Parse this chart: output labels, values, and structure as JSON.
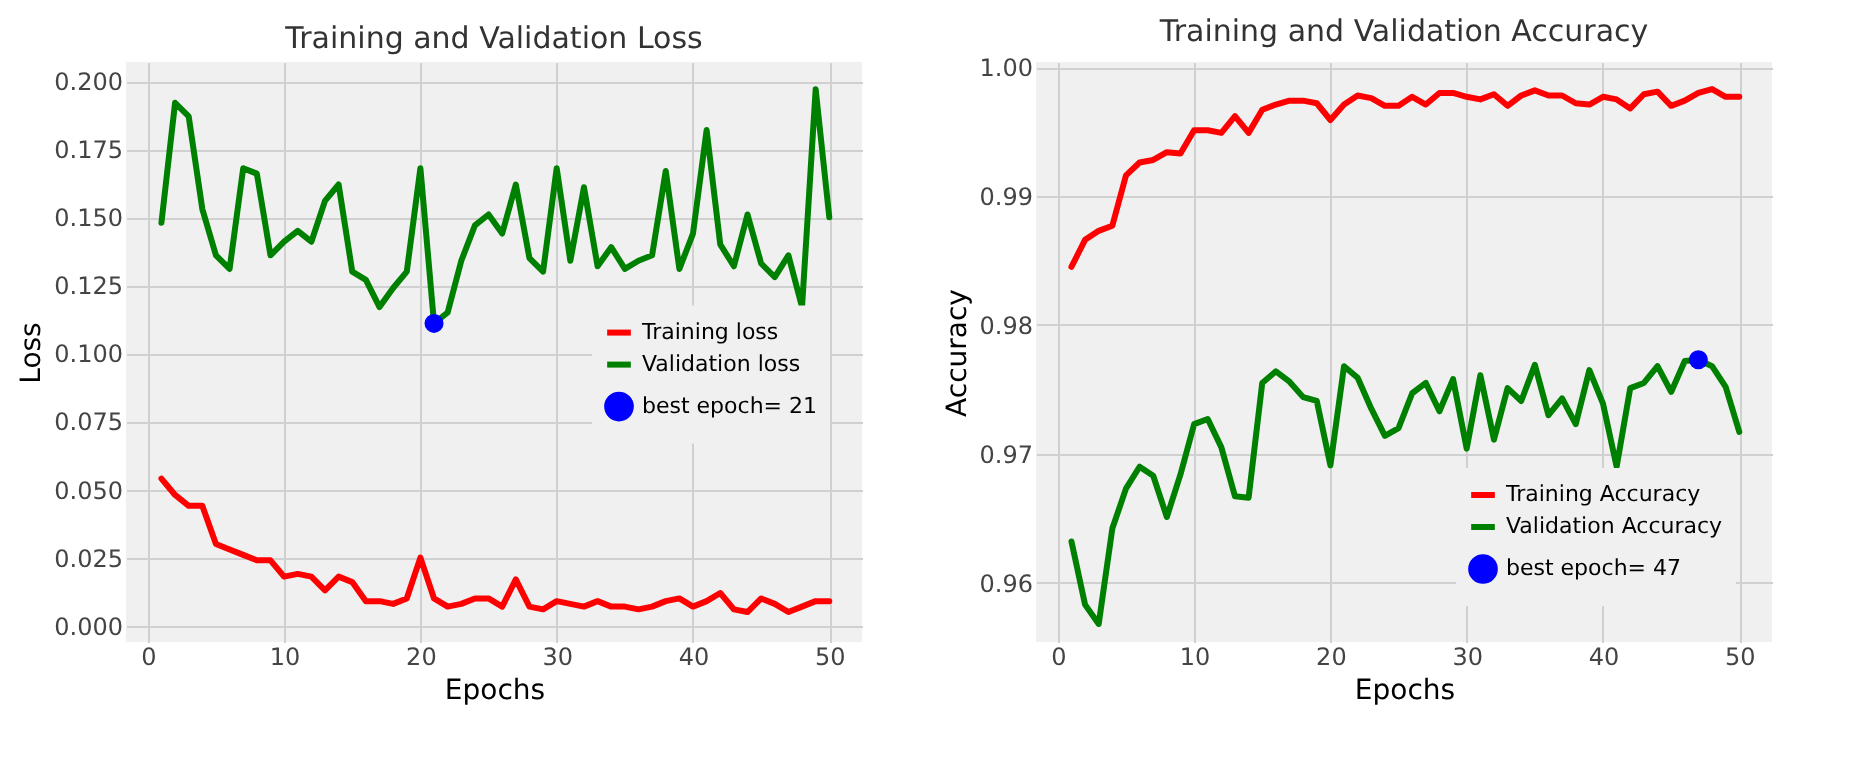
{
  "chart_data": [
    {
      "type": "line",
      "title": "Training and Validation Loss",
      "xlabel": "Epochs",
      "ylabel": "Loss",
      "x": [
        1,
        2,
        3,
        4,
        5,
        6,
        7,
        8,
        9,
        10,
        11,
        12,
        13,
        14,
        15,
        16,
        17,
        18,
        19,
        20,
        21,
        22,
        23,
        24,
        25,
        26,
        27,
        28,
        29,
        30,
        31,
        32,
        33,
        34,
        35,
        36,
        37,
        38,
        39,
        40,
        41,
        42,
        43,
        44,
        45,
        46,
        47,
        48,
        49,
        50
      ],
      "series": [
        {
          "name": "Training loss",
          "color": "#ff0000",
          "values": [
            0.054,
            0.048,
            0.044,
            0.044,
            0.03,
            0.028,
            0.026,
            0.024,
            0.024,
            0.018,
            0.019,
            0.018,
            0.013,
            0.018,
            0.016,
            0.009,
            0.009,
            0.008,
            0.01,
            0.025,
            0.01,
            0.007,
            0.008,
            0.01,
            0.01,
            0.007,
            0.017,
            0.007,
            0.006,
            0.009,
            0.008,
            0.007,
            0.009,
            0.007,
            0.007,
            0.006,
            0.007,
            0.009,
            0.01,
            0.007,
            0.009,
            0.012,
            0.006,
            0.005,
            0.01,
            0.008,
            0.005,
            0.007,
            0.009,
            0.009
          ]
        },
        {
          "name": "Validation loss",
          "color": "#008000",
          "values": [
            0.148,
            0.192,
            0.187,
            0.153,
            0.136,
            0.131,
            0.168,
            0.166,
            0.136,
            0.141,
            0.145,
            0.141,
            0.156,
            0.162,
            0.13,
            0.127,
            0.117,
            0.124,
            0.13,
            0.168,
            0.111,
            0.115,
            0.134,
            0.147,
            0.151,
            0.144,
            0.162,
            0.135,
            0.13,
            0.168,
            0.134,
            0.161,
            0.132,
            0.139,
            0.131,
            0.134,
            0.136,
            0.167,
            0.131,
            0.144,
            0.182,
            0.14,
            0.132,
            0.151,
            0.133,
            0.128,
            0.136,
            0.117,
            0.197,
            0.15
          ]
        },
        {
          "name": "best epoch= 21",
          "type": "scatter",
          "color": "#0000ff",
          "marker": "circle",
          "x": [
            21
          ],
          "values": [
            0.111
          ]
        }
      ],
      "xlim": [
        -1.6,
        52.4
      ],
      "xticks": [
        0,
        10,
        20,
        30,
        40,
        50
      ],
      "ylim": [
        -0.006,
        0.207
      ],
      "yticks": [
        {
          "value": 0,
          "label": "0.000"
        },
        {
          "value": 0.025,
          "label": "0.025"
        },
        {
          "value": 0.05,
          "label": "0.050"
        },
        {
          "value": 0.075,
          "label": "0.075"
        },
        {
          "value": 0.1,
          "label": "0.100"
        },
        {
          "value": 0.125,
          "label": "0.125"
        },
        {
          "value": 0.15,
          "label": "0.150"
        },
        {
          "value": 0.175,
          "label": "0.175"
        },
        {
          "value": 0.2,
          "label": "0.200"
        }
      ],
      "grid": true,
      "legend": "right",
      "line_style": "solid"
    },
    {
      "type": "line",
      "title": "Training and Validation Accuracy",
      "xlabel": "Epochs",
      "ylabel": "Accuracy",
      "x": [
        1,
        2,
        3,
        4,
        5,
        6,
        7,
        8,
        9,
        10,
        11,
        12,
        13,
        14,
        15,
        16,
        17,
        18,
        19,
        20,
        21,
        22,
        23,
        24,
        25,
        26,
        27,
        28,
        29,
        30,
        31,
        32,
        33,
        34,
        35,
        36,
        37,
        38,
        39,
        40,
        41,
        42,
        43,
        44,
        45,
        46,
        47,
        48,
        49,
        50
      ],
      "series": [
        {
          "name": "Training Accuracy",
          "color": "#ff0000",
          "values": [
            0.9845,
            0.9866,
            0.9873,
            0.9877,
            0.9916,
            0.9926,
            0.9928,
            0.9934,
            0.9933,
            0.9951,
            0.9951,
            0.9949,
            0.9962,
            0.9949,
            0.9967,
            0.9971,
            0.9974,
            0.9974,
            0.9972,
            0.9959,
            0.9971,
            0.9978,
            0.9976,
            0.997,
            0.997,
            0.9977,
            0.9971,
            0.998,
            0.998,
            0.9977,
            0.9975,
            0.9979,
            0.997,
            0.9978,
            0.9982,
            0.9978,
            0.9978,
            0.9972,
            0.9971,
            0.9977,
            0.9975,
            0.9968,
            0.9979,
            0.9981,
            0.997,
            0.9974,
            0.998,
            0.9983,
            0.9977,
            0.9977
          ]
        },
        {
          "name": "Validation Accuracy",
          "color": "#008000",
          "values": [
            0.9632,
            0.9583,
            0.9568,
            0.9642,
            0.9673,
            0.969,
            0.9683,
            0.9651,
            0.9684,
            0.9723,
            0.9727,
            0.9705,
            0.9667,
            0.9666,
            0.9755,
            0.9764,
            0.9756,
            0.9744,
            0.9741,
            0.9691,
            0.9768,
            0.9759,
            0.9735,
            0.9714,
            0.972,
            0.9747,
            0.9755,
            0.9733,
            0.9758,
            0.9704,
            0.9761,
            0.9711,
            0.9751,
            0.9741,
            0.9769,
            0.973,
            0.9743,
            0.9723,
            0.9765,
            0.9739,
            0.969,
            0.9751,
            0.9755,
            0.9768,
            0.9748,
            0.9772,
            0.9773,
            0.9768,
            0.9752,
            0.9717
          ]
        },
        {
          "name": "best epoch= 47",
          "type": "scatter",
          "color": "#0000ff",
          "marker": "circle",
          "x": [
            47
          ],
          "values": [
            0.9773
          ]
        }
      ],
      "xlim": [
        -1.6,
        52.4
      ],
      "xticks": [
        0,
        10,
        20,
        30,
        40,
        50
      ],
      "ylim": [
        0.9554,
        1.0004
      ],
      "yticks": [
        0.96,
        0.97,
        0.98,
        0.99,
        {
          "value": 1.0,
          "label": "1.00"
        }
      ],
      "grid": true,
      "legend": "bottom right",
      "line_style": "solid"
    }
  ]
}
